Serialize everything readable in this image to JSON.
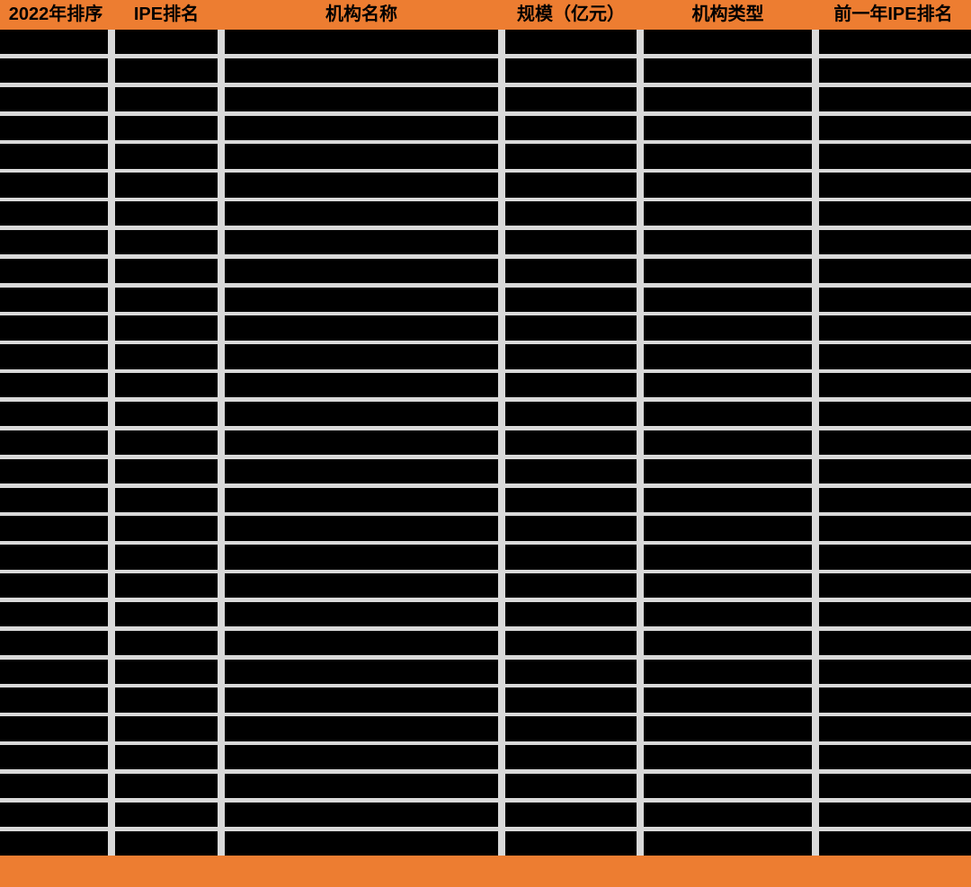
{
  "table": {
    "columns": [
      "2022年排序",
      "IPE排名",
      "机构名称",
      "规模（亿元）",
      "机构类型",
      "前一年IPE排名"
    ],
    "row_count": 29,
    "cells_redacted": true
  },
  "chart_data": {
    "type": "table",
    "title": "",
    "columns": [
      "2022年排序",
      "IPE排名",
      "机构名称",
      "规模（亿元）",
      "机构类型",
      "前一年IPE排名"
    ],
    "row_count": 29,
    "rows_note": "all 29 data rows are fully blacked out / redacted; no cell values are visible in the pixels"
  },
  "colors": {
    "header_bg": "#ED7D31",
    "footer_bg": "#ED7D31",
    "header_text": "#000000",
    "cell_bg": "#000000",
    "gridline": "#D9D9D9",
    "page_bg": "#FFFFFF"
  }
}
